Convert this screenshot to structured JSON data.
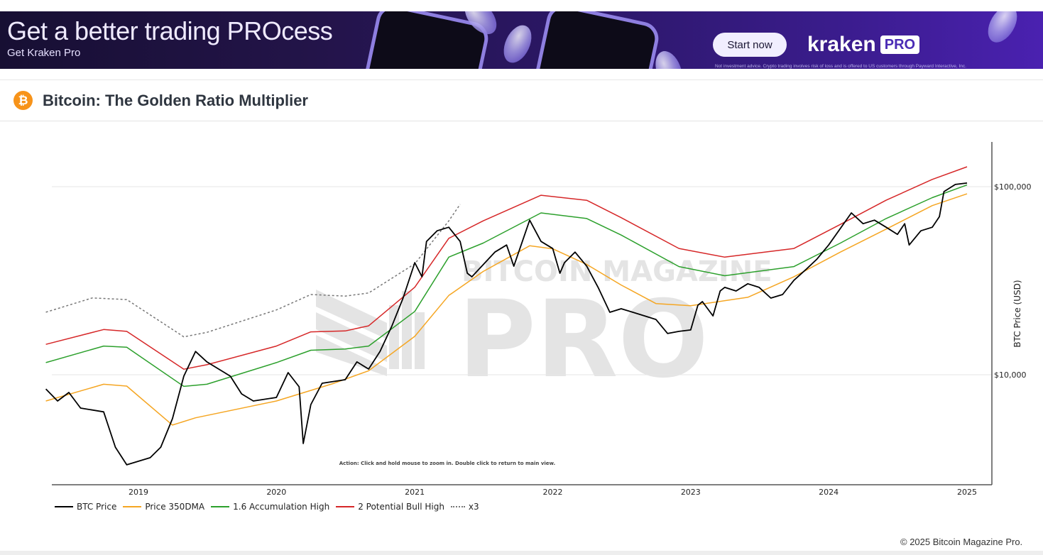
{
  "ad": {
    "headline": "Get a better trading PROcess",
    "subline": "Get Kraken Pro",
    "cta_label": "Start now",
    "brand_wordmark": "kraken",
    "brand_badge": "PRO",
    "disclaimer": "Not investment advice. Crypto trading involves risk of loss and is offered to US customers through Payward Interactive, Inc."
  },
  "header": {
    "icon": "bitcoin-icon",
    "icon_glyph": "₿",
    "title": "Bitcoin: The Golden Ratio Multiplier"
  },
  "chart": {
    "ylabel": "BTC Price (USD)",
    "action_hint": "Action: Click and hold mouse to zoom in.  Double click to return to main view.",
    "watermark_top": "BITCOIN MAGAZINE",
    "watermark_bottom": "PRO",
    "y_ticks": [
      "$100,000",
      "$10,000"
    ],
    "x_ticks": [
      "2019",
      "2020",
      "2021",
      "2022",
      "2023",
      "2024",
      "2025"
    ]
  },
  "legend": [
    {
      "label": "BTC Price",
      "color": "#000000",
      "style": "solid"
    },
    {
      "label": "Price 350DMA",
      "color": "#f5a623",
      "style": "solid"
    },
    {
      "label": "1.6 Accumulation High",
      "color": "#2ca02c",
      "style": "solid"
    },
    {
      "label": "2 Potential Bull High",
      "color": "#d62728",
      "style": "solid"
    },
    {
      "label": "x3",
      "color": "#777777",
      "style": "dotted"
    }
  ],
  "footer": {
    "copyright": "© 2025 Bitcoin Magazine Pro."
  },
  "chart_data": {
    "type": "line",
    "title": "Bitcoin: The Golden Ratio Multiplier",
    "xlabel": "",
    "ylabel": "BTC Price (USD)",
    "y_scale": "log",
    "ylim": [
      2500,
      150000
    ],
    "xlim": [
      "2018-05",
      "2025-01"
    ],
    "grid": {
      "y": true,
      "x": false
    },
    "legend_position": "bottom-left",
    "x_ticks": [
      "2019",
      "2020",
      "2021",
      "2022",
      "2023",
      "2024",
      "2025"
    ],
    "y_ticks": [
      10000,
      100000
    ],
    "annotations": [
      "Action: Click and hold mouse to zoom in.  Double click to return to main view."
    ],
    "series": [
      {
        "name": "BTC Price",
        "color": "#000000",
        "points": [
          [
            "2018-05",
            8400
          ],
          [
            "2018-06",
            7250
          ],
          [
            "2018-07",
            8050
          ],
          [
            "2018-08",
            6650
          ],
          [
            "2018-10",
            6350
          ],
          [
            "2018-11",
            4120
          ],
          [
            "2018-12",
            3320
          ],
          [
            "2019-02",
            3620
          ],
          [
            "2019-03",
            4120
          ],
          [
            "2019-04",
            5840
          ],
          [
            "2019-05",
            9830
          ],
          [
            "2019-06",
            13300
          ],
          [
            "2019-07",
            11700
          ],
          [
            "2019-09",
            9830
          ],
          [
            "2019-10",
            7910
          ],
          [
            "2019-11",
            7250
          ],
          [
            "2020-01",
            7570
          ],
          [
            "2020-02",
            10260
          ],
          [
            "2020-03",
            8630
          ],
          [
            "2020-03-12",
            4310
          ],
          [
            "2020-04",
            6940
          ],
          [
            "2020-05",
            9010
          ],
          [
            "2020-07",
            9410
          ],
          [
            "2020-08",
            11700
          ],
          [
            "2020-09",
            10720
          ],
          [
            "2020-10",
            13300
          ],
          [
            "2020-11",
            18070
          ],
          [
            "2020-12",
            25560
          ],
          [
            "2021-01",
            39430
          ],
          [
            "2021-01-20",
            33170
          ],
          [
            "2021-02",
            51140
          ],
          [
            "2021-03",
            58260
          ],
          [
            "2021-04",
            60840
          ],
          [
            "2021-05",
            51140
          ],
          [
            "2021-05-20",
            34630
          ],
          [
            "2021-06",
            33170
          ],
          [
            "2021-08",
            44870
          ],
          [
            "2021-09",
            48950
          ],
          [
            "2021-09-20",
            37740
          ],
          [
            "2021-11",
            66350
          ],
          [
            "2021-12",
            51140
          ],
          [
            "2022-01",
            46860
          ],
          [
            "2022-01-20",
            34630
          ],
          [
            "2022-02",
            39430
          ],
          [
            "2022-03",
            44870
          ],
          [
            "2022-04",
            37740
          ],
          [
            "2022-05",
            29140
          ],
          [
            "2022-06",
            21480
          ],
          [
            "2022-07",
            22430
          ],
          [
            "2022-08",
            21480
          ],
          [
            "2022-09",
            20550
          ],
          [
            "2022-10",
            19670
          ],
          [
            "2022-11",
            16560
          ],
          [
            "2022-12",
            17000
          ],
          [
            "2023-01",
            17300
          ],
          [
            "2023-01-20",
            23420
          ],
          [
            "2023-02",
            24470
          ],
          [
            "2023-03",
            20550
          ],
          [
            "2023-03-20",
            27880
          ],
          [
            "2023-04",
            29140
          ],
          [
            "2023-05",
            27880
          ],
          [
            "2023-06",
            30460
          ],
          [
            "2023-07",
            29140
          ],
          [
            "2023-08",
            25560
          ],
          [
            "2023-09",
            26700
          ],
          [
            "2023-10",
            31800
          ],
          [
            "2023-11",
            36140
          ],
          [
            "2023-12",
            41200
          ],
          [
            "2024-01",
            48950
          ],
          [
            "2024-03",
            72480
          ],
          [
            "2024-04",
            63530
          ],
          [
            "2024-05",
            66350
          ],
          [
            "2024-06",
            60840
          ],
          [
            "2024-07",
            55790
          ],
          [
            "2024-07-20",
            63530
          ],
          [
            "2024-08",
            48950
          ],
          [
            "2024-09",
            58260
          ],
          [
            "2024-10",
            60840
          ],
          [
            "2024-10-20",
            69330
          ],
          [
            "2024-11",
            94080
          ],
          [
            "2024-12",
            102770
          ],
          [
            "2025-01",
            104570
          ]
        ]
      },
      {
        "name": "Price 350DMA",
        "color": "#f5a623",
        "points": [
          [
            "2018-05",
            7250
          ],
          [
            "2018-10",
            8900
          ],
          [
            "2018-12",
            8700
          ],
          [
            "2019-04",
            5400
          ],
          [
            "2019-06",
            5900
          ],
          [
            "2020-01",
            7250
          ],
          [
            "2020-06",
            9000
          ],
          [
            "2020-09",
            10500
          ],
          [
            "2021-01",
            16000
          ],
          [
            "2021-04",
            26400
          ],
          [
            "2021-07",
            35400
          ],
          [
            "2021-11",
            48500
          ],
          [
            "2022-01",
            46700
          ],
          [
            "2022-04",
            38600
          ],
          [
            "2022-07",
            30000
          ],
          [
            "2022-10",
            23900
          ],
          [
            "2023-01",
            23300
          ],
          [
            "2023-06",
            25800
          ],
          [
            "2023-10",
            33200
          ],
          [
            "2024-02",
            44900
          ],
          [
            "2024-06",
            59500
          ],
          [
            "2024-10",
            79300
          ],
          [
            "2025-01",
            91600
          ]
        ]
      },
      {
        "name": "1.6 Accumulation High",
        "color": "#2ca02c",
        "points": [
          [
            "2018-05",
            11600
          ],
          [
            "2018-10",
            14200
          ],
          [
            "2018-12",
            14000
          ],
          [
            "2019-05",
            8670
          ],
          [
            "2019-07",
            8900
          ],
          [
            "2020-01",
            11600
          ],
          [
            "2020-04",
            13500
          ],
          [
            "2020-07",
            13700
          ],
          [
            "2020-09",
            14200
          ],
          [
            "2021-01",
            21700
          ],
          [
            "2021-04",
            42200
          ],
          [
            "2021-07",
            50100
          ],
          [
            "2021-12",
            72500
          ],
          [
            "2022-04",
            67700
          ],
          [
            "2022-07",
            55300
          ],
          [
            "2022-12",
            37600
          ],
          [
            "2023-04",
            33600
          ],
          [
            "2023-10",
            37600
          ],
          [
            "2024-02",
            50100
          ],
          [
            "2024-06",
            67700
          ],
          [
            "2024-10",
            87400
          ],
          [
            "2025-01",
            102100
          ]
        ]
      },
      {
        "name": "2 Potential Bull High",
        "color": "#d62728",
        "points": [
          [
            "2018-05",
            14500
          ],
          [
            "2018-10",
            17400
          ],
          [
            "2018-12",
            17000
          ],
          [
            "2019-05",
            10700
          ],
          [
            "2019-07",
            11300
          ],
          [
            "2020-01",
            14200
          ],
          [
            "2020-04",
            16900
          ],
          [
            "2020-07",
            17100
          ],
          [
            "2020-09",
            18200
          ],
          [
            "2021-01",
            29200
          ],
          [
            "2021-04",
            53100
          ],
          [
            "2021-07",
            65800
          ],
          [
            "2021-12",
            90000
          ],
          [
            "2022-04",
            84600
          ],
          [
            "2022-07",
            68400
          ],
          [
            "2022-12",
            46900
          ],
          [
            "2023-04",
            42200
          ],
          [
            "2023-10",
            46900
          ],
          [
            "2024-02",
            63000
          ],
          [
            "2024-06",
            84700
          ],
          [
            "2024-10",
            109300
          ],
          [
            "2025-01",
            127500
          ]
        ]
      },
      {
        "name": "x3",
        "color": "#777777",
        "style": "dotted",
        "points": [
          [
            "2018-05",
            21500
          ],
          [
            "2018-09",
            25600
          ],
          [
            "2018-12",
            25100
          ],
          [
            "2019-05",
            15900
          ],
          [
            "2019-07",
            16800
          ],
          [
            "2020-01",
            22100
          ],
          [
            "2020-04",
            26700
          ],
          [
            "2020-07",
            26200
          ],
          [
            "2020-09",
            27200
          ],
          [
            "2021-01",
            38900
          ],
          [
            "2021-04",
            65800
          ],
          [
            "2021-05",
            80600
          ]
        ]
      }
    ]
  }
}
